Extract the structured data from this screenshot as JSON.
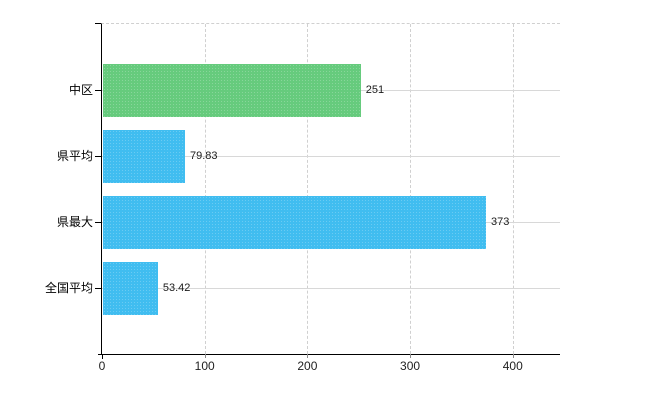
{
  "chart_data": {
    "type": "bar",
    "orientation": "horizontal",
    "title": "",
    "xlabel": "",
    "ylabel": "",
    "categories": [
      "中区",
      "県平均",
      "県最大",
      "全国平均"
    ],
    "values": [
      251,
      79.83,
      373,
      53.42
    ],
    "value_labels": [
      "251",
      "79.83",
      "373",
      "53.42"
    ],
    "bar_colors": [
      "#66cb7d",
      "#40bdf0",
      "#40bdf0",
      "#40bdf0"
    ],
    "x_ticks": [
      "0",
      "100",
      "200",
      "300",
      "400"
    ],
    "x_tick_values": [
      0,
      100,
      200,
      300,
      400
    ],
    "xlim": [
      0,
      446
    ],
    "grid": true,
    "legend": false,
    "value_label_position": "outside-right"
  },
  "colors": {
    "background": "#ffffff",
    "bar_green": "#66cb7d",
    "bar_blue": "#40bdf0",
    "gridline": "#d8d8d8",
    "frame_dashed": "#d0d0d0",
    "axis": "#000000",
    "text": "#1a1a1a"
  }
}
